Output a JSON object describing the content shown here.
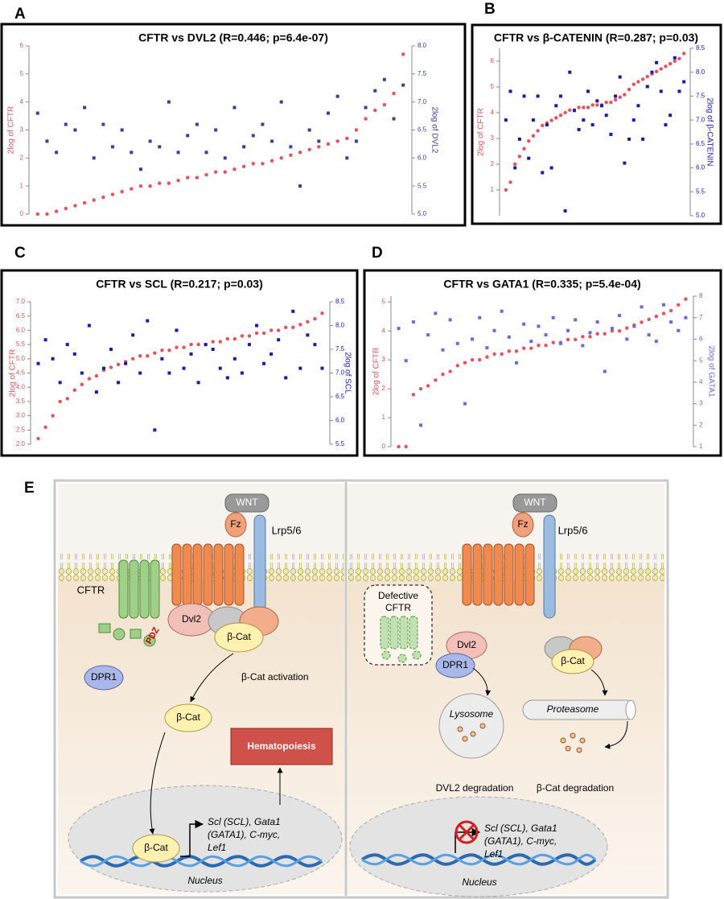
{
  "chart_data": [
    {
      "type": "scatter",
      "panel": "A",
      "title": "CFTR vs DVL2 (R=0.446; p=6.4e-07)",
      "ylabel": "2log of CFTR",
      "y2label": "2log of DVL2",
      "ylim": [
        0,
        6
      ],
      "yticks": [
        0,
        1,
        2,
        3,
        4,
        5,
        6
      ],
      "y2lim": [
        5,
        8
      ],
      "y2ticks": [
        {
          "value": 5,
          "label": "5.0"
        },
        5.5,
        {
          "value": 6,
          "label": "6.0"
        },
        6.5,
        {
          "value": 7,
          "label": "7.0"
        },
        7.5,
        {
          "value": 8,
          "label": "8.0"
        }
      ],
      "series": [
        {
          "name": "CFTR",
          "color": "#e8505b",
          "marker": "circle",
          "values": [
            0,
            0,
            0.1,
            0.2,
            0.3,
            0.4,
            0.5,
            0.6,
            0.7,
            0.8,
            0.9,
            1.0,
            1.0,
            1.1,
            1.1,
            1.2,
            1.3,
            1.3,
            1.4,
            1.5,
            1.5,
            1.6,
            1.7,
            1.8,
            1.8,
            1.9,
            2.0,
            2.1,
            2.2,
            2.3,
            2.4,
            2.5,
            2.6,
            2.7,
            3.0,
            3.4,
            3.7,
            3.9,
            4.3,
            5.7
          ]
        },
        {
          "name": "DVL2",
          "color": "#3a3f9a",
          "marker": "square",
          "axis": "y2",
          "values": [
            6.8,
            6.3,
            6.1,
            6.6,
            6.5,
            6.9,
            6.0,
            6.6,
            6.2,
            6.5,
            6.1,
            5.8,
            6.3,
            6.2,
            7.0,
            6.1,
            6.4,
            6.6,
            6.1,
            6.5,
            6.0,
            6.9,
            6.2,
            6.4,
            6.6,
            6.3,
            7.0,
            6.2,
            5.5,
            6.5,
            6.3,
            6.8,
            7.1,
            6.0,
            6.3,
            6.9,
            7.2,
            7.4,
            6.7,
            7.3
          ]
        }
      ]
    },
    {
      "type": "scatter",
      "panel": "B",
      "title": "CFTR vs β-CATENIN (R=0.287; p=0.03)",
      "ylabel": "2log of CFTR",
      "y2label": "2log of β-CATENIN",
      "ylim": [
        0,
        6.5
      ],
      "yticks": [
        1,
        2,
        3,
        4,
        5,
        6
      ],
      "y2lim": [
        5,
        8.5
      ],
      "y2ticks": [
        {
          "value": 5,
          "label": "5.0"
        },
        5.5,
        {
          "value": 6,
          "label": "6.0"
        },
        6.5,
        {
          "value": 7,
          "label": "7.0"
        },
        7.5,
        {
          "value": 8,
          "label": "8.0"
        },
        8.5
      ],
      "series": [
        {
          "name": "CFTR",
          "color": "#e8505b",
          "marker": "circle",
          "values": [
            1.0,
            1.3,
            2.0,
            2.3,
            2.6,
            2.9,
            3.1,
            3.3,
            3.5,
            3.6,
            3.7,
            3.8,
            3.9,
            4.0,
            4.1,
            4.1,
            4.2,
            4.2,
            4.2,
            4.3,
            4.3,
            4.3,
            4.4,
            4.4,
            4.5,
            4.6,
            4.7,
            4.9,
            5.1,
            5.2,
            5.3,
            5.4,
            5.5,
            5.6,
            5.7,
            5.8,
            5.9,
            6.0,
            6.1,
            6.3
          ]
        },
        {
          "name": "β-CATENIN",
          "color": "#1a1ab0",
          "marker": "square",
          "axis": "y2",
          "values": [
            7.0,
            7.6,
            6.0,
            6.6,
            7.5,
            6.2,
            7.0,
            7.5,
            5.9,
            6.9,
            6.0,
            7.3,
            7.5,
            5.1,
            8.0,
            7.2,
            6.8,
            7.0,
            7.6,
            6.9,
            7.4,
            7.3,
            7.1,
            6.7,
            7.5,
            7.9,
            6.1,
            6.6,
            7.0,
            7.3,
            6.6,
            7.7,
            8.0,
            8.2,
            7.6,
            6.9,
            7.1,
            8.3,
            7.6,
            7.8
          ]
        }
      ]
    },
    {
      "type": "scatter",
      "panel": "C",
      "title": "CFTR vs SCL (R=0.217; p=0.03)",
      "ylabel": "2log of CFTR",
      "y2label": "2log of SCL",
      "ylim": [
        2,
        7
      ],
      "yticks": [
        {
          "value": 2,
          "label": "2.0"
        },
        2.5,
        {
          "value": 3,
          "label": "3.0"
        },
        3.5,
        {
          "value": 4,
          "label": "4.0"
        },
        4.5,
        {
          "value": 5,
          "label": "5.0"
        },
        5.5,
        {
          "value": 6,
          "label": "6.0"
        },
        6.5,
        {
          "value": 7,
          "label": "7.0"
        }
      ],
      "y2lim": [
        5.5,
        8.5
      ],
      "y2ticks": [
        5.5,
        {
          "value": 6,
          "label": "6.0"
        },
        6.5,
        {
          "value": 7,
          "label": "7.0"
        },
        7.5,
        {
          "value": 8,
          "label": "8.0"
        },
        8.5
      ],
      "series": [
        {
          "name": "CFTR",
          "color": "#e8505b",
          "marker": "circle",
          "values": [
            2.2,
            2.6,
            3.0,
            3.5,
            3.6,
            3.9,
            4.1,
            4.3,
            4.4,
            4.6,
            4.7,
            4.8,
            4.9,
            5.0,
            5.1,
            5.1,
            5.2,
            5.3,
            5.3,
            5.4,
            5.4,
            5.5,
            5.5,
            5.5,
            5.6,
            5.6,
            5.7,
            5.7,
            5.8,
            5.8,
            5.9,
            5.9,
            6.0,
            6.0,
            6.1,
            6.1,
            6.2,
            6.3,
            6.4,
            6.6
          ]
        },
        {
          "name": "SCL",
          "color": "#1a1ab0",
          "marker": "square",
          "axis": "y2",
          "values": [
            7.2,
            7.7,
            7.3,
            6.8,
            7.6,
            7.4,
            7.0,
            8.0,
            6.6,
            7.1,
            7.5,
            6.8,
            7.2,
            7.8,
            7.0,
            8.1,
            5.8,
            7.3,
            7.0,
            7.9,
            7.1,
            7.4,
            6.8,
            7.6,
            7.5,
            7.1,
            6.9,
            7.3,
            7.0,
            7.6,
            8.0,
            7.2,
            7.4,
            7.7,
            6.9,
            8.3,
            7.1,
            7.8,
            7.6,
            7.1
          ]
        }
      ]
    },
    {
      "type": "scatter",
      "panel": "D",
      "title": "CFTR vs GATA1 (R=0.335; p=5.4e-04)",
      "ylabel": "2log of CFTR",
      "y2label": "2log of GATA1",
      "ylim": [
        0,
        5.2
      ],
      "yticks": [
        0,
        1,
        2,
        3,
        4,
        5
      ],
      "y2lim": [
        1,
        8
      ],
      "y2ticks": [
        1,
        2,
        3,
        4,
        5,
        6,
        7,
        8
      ],
      "series": [
        {
          "name": "CFTR",
          "color": "#e8505b",
          "marker": "circle",
          "values": [
            0,
            0,
            1.8,
            2.0,
            2.1,
            2.3,
            2.5,
            2.6,
            2.8,
            2.9,
            3.0,
            3.0,
            3.1,
            3.2,
            3.2,
            3.3,
            3.3,
            3.4,
            3.4,
            3.5,
            3.5,
            3.6,
            3.6,
            3.7,
            3.7,
            3.8,
            3.8,
            3.9,
            3.9,
            4.0,
            4.0,
            4.1,
            4.2,
            4.3,
            4.4,
            4.5,
            4.6,
            4.7,
            4.9,
            5.1
          ]
        },
        {
          "name": "GATA1",
          "color": "#6a6ae0",
          "marker": "square",
          "axis": "y2",
          "values": [
            6.5,
            5.0,
            6.8,
            2.0,
            6.2,
            7.2,
            5.5,
            6.9,
            5.8,
            3.0,
            6.0,
            7.0,
            5.6,
            6.4,
            7.3,
            6.1,
            4.9,
            6.7,
            5.9,
            6.6,
            6.2,
            7.0,
            5.8,
            6.4,
            6.9,
            5.7,
            6.3,
            6.8,
            4.5,
            6.5,
            7.1,
            6.0,
            6.6,
            7.5,
            6.2,
            5.9,
            7.6,
            6.8,
            6.4,
            7.0
          ]
        }
      ]
    }
  ],
  "diagram": {
    "panel": "E",
    "left": {
      "wnt": "WNT",
      "fz": "Fz",
      "lrp": "Lrp5/6",
      "cftr": "CFTR",
      "pdz": "PDZ",
      "dvl2": "Dvl2",
      "bcat1": "β-Cat",
      "dpr1": "DPR1",
      "activation": "β-Cat activation",
      "bcat2": "β-Cat",
      "hematopoiesis": "Hematopoiesis",
      "bcat3": "β-Cat",
      "genes": [
        "Scl (SCL), Gata1",
        "(GATA1), C-myc,",
        "Lef1"
      ],
      "nucleus": "Nucleus"
    },
    "right": {
      "wnt": "WNT",
      "fz": "Fz",
      "lrp": "Lrp5/6",
      "defective": [
        "Defective",
        "CFTR"
      ],
      "dvl2": "Dvl2",
      "dpr1": "DPR1",
      "bcat": "β-Cat",
      "lysosome": "Lysosome",
      "proteasome": "Proteasome",
      "dvl2deg": "DVL2 degradation",
      "bcatdeg": "β-Cat degradation",
      "genes": [
        "Scl (SCL), Gata1",
        "(GATA1), C-myc,",
        "Lef1"
      ],
      "nucleus": "Nucleus"
    }
  }
}
